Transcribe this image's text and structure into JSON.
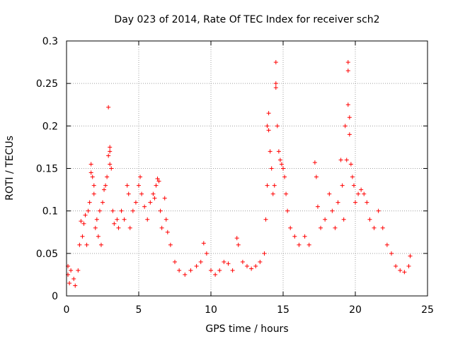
{
  "chart_data": {
    "type": "scatter",
    "title": "Day 023 of 2014, Rate Of TEC Index for receiver sch2",
    "xlabel": "GPS time / hours",
    "ylabel": "ROTI / TECUs",
    "xlim": [
      0,
      25
    ],
    "ylim": [
      0,
      0.3
    ],
    "x_ticks": [
      0,
      5,
      10,
      15,
      20,
      25
    ],
    "x_tick_labels": [
      "0",
      "5",
      "10",
      "15",
      "20",
      "25"
    ],
    "y_ticks": [
      0,
      0.05,
      0.1,
      0.15,
      0.2,
      0.25,
      0.3
    ],
    "y_tick_labels": [
      "0",
      "0.05",
      "0.1",
      "0.15",
      "0.2",
      "0.25",
      "0.3"
    ],
    "grid": true,
    "marker": "+",
    "color": "#ff0000",
    "series": [
      {
        "points": [
          [
            0.1,
            0.035
          ],
          [
            0.1,
            0.025
          ],
          [
            0.2,
            0.015
          ],
          [
            0.3,
            0.03
          ],
          [
            0.5,
            0.02
          ],
          [
            0.6,
            0.012
          ],
          [
            0.8,
            0.03
          ],
          [
            0.9,
            0.06
          ],
          [
            1.0,
            0.088
          ],
          [
            1.1,
            0.07
          ],
          [
            1.2,
            0.085
          ],
          [
            1.3,
            0.095
          ],
          [
            1.4,
            0.06
          ],
          [
            1.5,
            0.1
          ],
          [
            1.6,
            0.11
          ],
          [
            1.7,
            0.145
          ],
          [
            1.7,
            0.155
          ],
          [
            1.8,
            0.14
          ],
          [
            1.9,
            0.13
          ],
          [
            1.9,
            0.12
          ],
          [
            2.0,
            0.08
          ],
          [
            2.1,
            0.09
          ],
          [
            2.2,
            0.07
          ],
          [
            2.3,
            0.1
          ],
          [
            2.4,
            0.06
          ],
          [
            2.5,
            0.11
          ],
          [
            2.6,
            0.125
          ],
          [
            2.7,
            0.13
          ],
          [
            2.8,
            0.14
          ],
          [
            2.9,
            0.222
          ],
          [
            2.9,
            0.165
          ],
          [
            3.0,
            0.17
          ],
          [
            3.0,
            0.175
          ],
          [
            3.0,
            0.155
          ],
          [
            3.1,
            0.15
          ],
          [
            3.2,
            0.1
          ],
          [
            3.3,
            0.085
          ],
          [
            3.5,
            0.09
          ],
          [
            3.6,
            0.08
          ],
          [
            3.8,
            0.1
          ],
          [
            4.0,
            0.09
          ],
          [
            4.2,
            0.13
          ],
          [
            4.3,
            0.12
          ],
          [
            4.4,
            0.08
          ],
          [
            4.6,
            0.1
          ],
          [
            4.8,
            0.11
          ],
          [
            5.0,
            0.13
          ],
          [
            5.1,
            0.14
          ],
          [
            5.2,
            0.12
          ],
          [
            5.4,
            0.105
          ],
          [
            5.6,
            0.09
          ],
          [
            5.8,
            0.11
          ],
          [
            6.0,
            0.12
          ],
          [
            6.1,
            0.115
          ],
          [
            6.2,
            0.13
          ],
          [
            6.3,
            0.138
          ],
          [
            6.4,
            0.135
          ],
          [
            6.5,
            0.1
          ],
          [
            6.6,
            0.08
          ],
          [
            6.8,
            0.115
          ],
          [
            6.9,
            0.09
          ],
          [
            7.0,
            0.075
          ],
          [
            7.2,
            0.06
          ],
          [
            7.5,
            0.04
          ],
          [
            7.8,
            0.03
          ],
          [
            8.2,
            0.025
          ],
          [
            8.6,
            0.03
          ],
          [
            9.0,
            0.035
          ],
          [
            9.3,
            0.04
          ],
          [
            9.5,
            0.062
          ],
          [
            9.7,
            0.05
          ],
          [
            10.0,
            0.03
          ],
          [
            10.3,
            0.025
          ],
          [
            10.6,
            0.03
          ],
          [
            10.9,
            0.04
          ],
          [
            11.2,
            0.038
          ],
          [
            11.5,
            0.03
          ],
          [
            11.8,
            0.068
          ],
          [
            11.9,
            0.06
          ],
          [
            12.2,
            0.04
          ],
          [
            12.5,
            0.035
          ],
          [
            12.8,
            0.032
          ],
          [
            13.1,
            0.035
          ],
          [
            13.4,
            0.04
          ],
          [
            13.7,
            0.05
          ],
          [
            13.8,
            0.09
          ],
          [
            13.9,
            0.13
          ],
          [
            13.9,
            0.2
          ],
          [
            14.0,
            0.215
          ],
          [
            14.0,
            0.195
          ],
          [
            14.1,
            0.17
          ],
          [
            14.2,
            0.15
          ],
          [
            14.3,
            0.12
          ],
          [
            14.4,
            0.13
          ],
          [
            14.5,
            0.275
          ],
          [
            14.5,
            0.25
          ],
          [
            14.5,
            0.245
          ],
          [
            14.6,
            0.2
          ],
          [
            14.7,
            0.17
          ],
          [
            14.8,
            0.16
          ],
          [
            14.9,
            0.155
          ],
          [
            15.0,
            0.15
          ],
          [
            15.1,
            0.14
          ],
          [
            15.2,
            0.12
          ],
          [
            15.3,
            0.1
          ],
          [
            15.5,
            0.08
          ],
          [
            15.8,
            0.07
          ],
          [
            16.1,
            0.06
          ],
          [
            16.5,
            0.07
          ],
          [
            16.8,
            0.06
          ],
          [
            17.2,
            0.157
          ],
          [
            17.3,
            0.14
          ],
          [
            17.4,
            0.105
          ],
          [
            17.6,
            0.08
          ],
          [
            17.9,
            0.09
          ],
          [
            18.2,
            0.12
          ],
          [
            18.4,
            0.1
          ],
          [
            18.6,
            0.08
          ],
          [
            18.8,
            0.11
          ],
          [
            19.0,
            0.16
          ],
          [
            19.1,
            0.13
          ],
          [
            19.2,
            0.09
          ],
          [
            19.3,
            0.2
          ],
          [
            19.4,
            0.16
          ],
          [
            19.5,
            0.275
          ],
          [
            19.5,
            0.265
          ],
          [
            19.5,
            0.225
          ],
          [
            19.6,
            0.21
          ],
          [
            19.6,
            0.19
          ],
          [
            19.7,
            0.155
          ],
          [
            19.8,
            0.14
          ],
          [
            19.9,
            0.13
          ],
          [
            20.0,
            0.11
          ],
          [
            20.2,
            0.12
          ],
          [
            20.4,
            0.125
          ],
          [
            20.6,
            0.12
          ],
          [
            20.8,
            0.11
          ],
          [
            21.0,
            0.09
          ],
          [
            21.3,
            0.08
          ],
          [
            21.6,
            0.1
          ],
          [
            21.9,
            0.08
          ],
          [
            22.2,
            0.06
          ],
          [
            22.5,
            0.05
          ],
          [
            22.8,
            0.035
          ],
          [
            23.1,
            0.03
          ],
          [
            23.4,
            0.028
          ],
          [
            23.7,
            0.035
          ],
          [
            23.8,
            0.047
          ]
        ]
      }
    ]
  }
}
